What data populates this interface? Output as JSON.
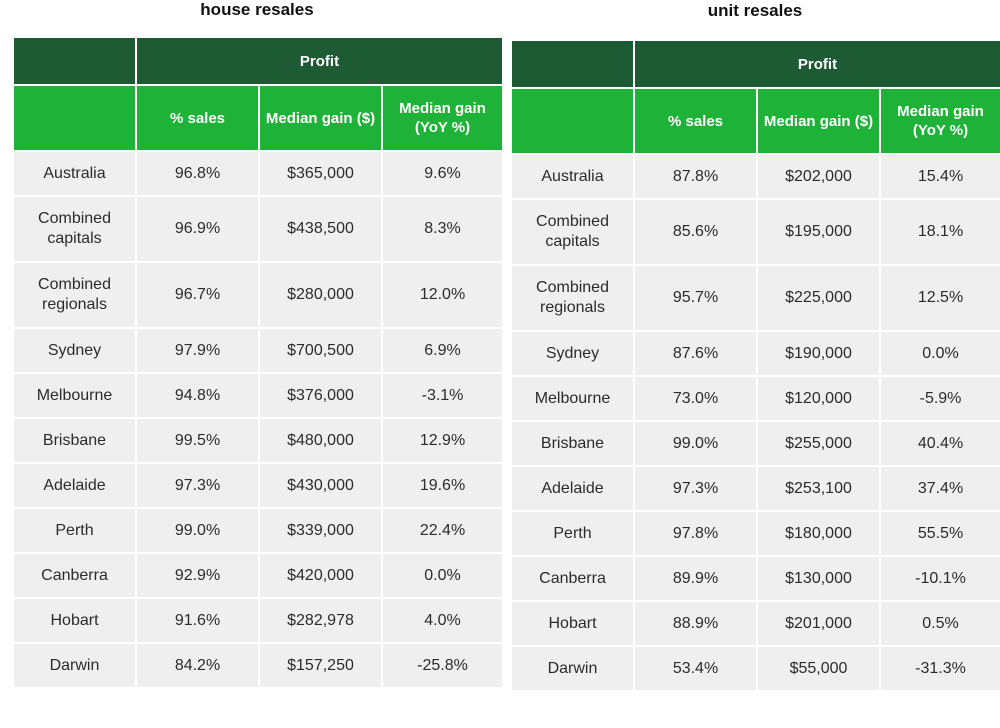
{
  "tables": [
    {
      "title": "house resales",
      "group_header": "Profit",
      "columns": [
        "% sales",
        "Median gain ($)",
        "Median gain (YoY %)"
      ],
      "rows": [
        {
          "name": "Australia",
          "sales": "96.8%",
          "gain": "$365,000",
          "yoy": "9.6%"
        },
        {
          "name": "Combined capitals",
          "sales": "96.9%",
          "gain": "$438,500",
          "yoy": "8.3%"
        },
        {
          "name": "Combined regionals",
          "sales": "96.7%",
          "gain": "$280,000",
          "yoy": "12.0%"
        },
        {
          "name": "Sydney",
          "sales": "97.9%",
          "gain": "$700,500",
          "yoy": "6.9%"
        },
        {
          "name": "Melbourne",
          "sales": "94.8%",
          "gain": "$376,000",
          "yoy": "-3.1%"
        },
        {
          "name": "Brisbane",
          "sales": "99.5%",
          "gain": "$480,000",
          "yoy": "12.9%"
        },
        {
          "name": "Adelaide",
          "sales": "97.3%",
          "gain": "$430,000",
          "yoy": "19.6%"
        },
        {
          "name": "Perth",
          "sales": "99.0%",
          "gain": "$339,000",
          "yoy": "22.4%"
        },
        {
          "name": "Canberra",
          "sales": "92.9%",
          "gain": "$420,000",
          "yoy": "0.0%"
        },
        {
          "name": "Hobart",
          "sales": "91.6%",
          "gain": "$282,978",
          "yoy": "4.0%"
        },
        {
          "name": "Darwin",
          "sales": "84.2%",
          "gain": "$157,250",
          "yoy": "-25.8%"
        }
      ]
    },
    {
      "title": "unit resales",
      "group_header": "Profit",
      "columns": [
        "% sales",
        "Median gain ($)",
        "Median gain (YoY %)"
      ],
      "rows": [
        {
          "name": "Australia",
          "sales": "87.8%",
          "gain": "$202,000",
          "yoy": "15.4%"
        },
        {
          "name": "Combined capitals",
          "sales": "85.6%",
          "gain": "$195,000",
          "yoy": "18.1%"
        },
        {
          "name": "Combined regionals",
          "sales": "95.7%",
          "gain": "$225,000",
          "yoy": "12.5%"
        },
        {
          "name": "Sydney",
          "sales": "87.6%",
          "gain": "$190,000",
          "yoy": "0.0%"
        },
        {
          "name": "Melbourne",
          "sales": "73.0%",
          "gain": "$120,000",
          "yoy": "-5.9%"
        },
        {
          "name": "Brisbane",
          "sales": "99.0%",
          "gain": "$255,000",
          "yoy": "40.4%"
        },
        {
          "name": "Adelaide",
          "sales": "97.3%",
          "gain": "$253,100",
          "yoy": "37.4%"
        },
        {
          "name": "Perth",
          "sales": "97.8%",
          "gain": "$180,000",
          "yoy": "55.5%"
        },
        {
          "name": "Canberra",
          "sales": "89.9%",
          "gain": "$130,000",
          "yoy": "-10.1%"
        },
        {
          "name": "Hobart",
          "sales": "88.9%",
          "gain": "$201,000",
          "yoy": "0.5%"
        },
        {
          "name": "Darwin",
          "sales": "53.4%",
          "gain": "$55,000",
          "yoy": "-31.3%"
        }
      ]
    }
  ],
  "colors": {
    "header_dark_green": "#1e5b34",
    "header_bright_green": "#1eb238",
    "cell_background": "#efefef"
  }
}
